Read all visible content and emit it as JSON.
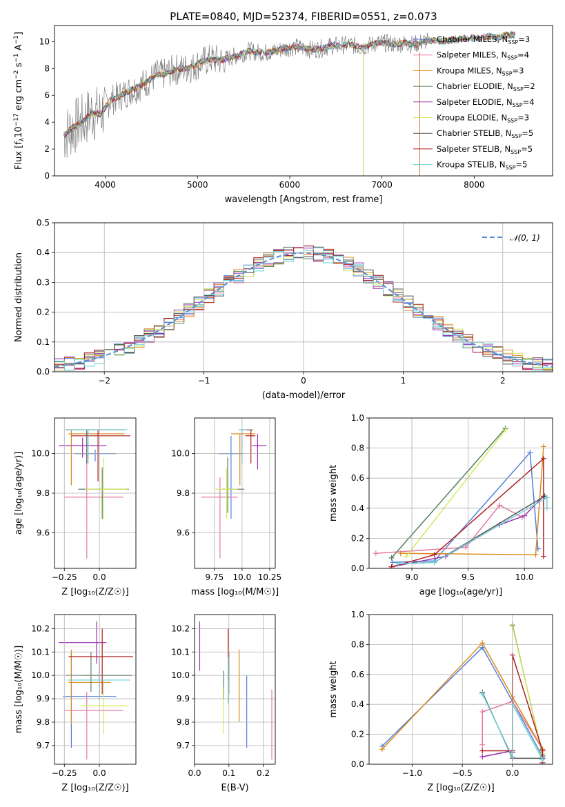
{
  "chart_data": [
    {
      "id": "spectrum",
      "type": "line",
      "title": "PLATE=0840, MJD=52374, FIBERID=0551, z=0.073",
      "xlabel": "wavelength [Angstrom, rest frame]",
      "ylabel": "Flux [f",
      "xlim": [
        3450,
        8850
      ],
      "ylim": [
        0,
        11.2
      ],
      "xticks": [
        4000,
        5000,
        6000,
        7000,
        8000
      ],
      "yticks": [
        0,
        2,
        4,
        6,
        8,
        10
      ],
      "grid": false,
      "legend_position": "right",
      "data_series": {
        "name": "data",
        "color": "#808080",
        "x": [
          3550,
          3650,
          3750,
          3850,
          3950,
          4050,
          4150,
          4250,
          4350,
          4450,
          4550,
          4650,
          4750,
          4850,
          4950,
          5050,
          5150,
          5250,
          5350,
          5450,
          5550,
          5650,
          5750,
          5850,
          5950,
          6050,
          6150,
          6250,
          6350,
          6450,
          6550,
          6650,
          6750,
          6850,
          6950,
          7050,
          7150,
          7250,
          7350,
          7450,
          7550,
          7650,
          7750,
          7850,
          7950,
          8050,
          8150,
          8250,
          8350,
          8450
        ],
        "y": [
          3.0,
          3.6,
          4.0,
          4.7,
          4.6,
          5.6,
          5.9,
          6.3,
          6.6,
          7.0,
          7.5,
          7.6,
          7.9,
          8.0,
          8.1,
          8.5,
          8.7,
          8.6,
          8.8,
          9.0,
          9.3,
          9.2,
          9.2,
          9.3,
          9.5,
          9.6,
          9.5,
          9.4,
          9.5,
          9.7,
          9.7,
          9.8,
          9.6,
          9.7,
          9.9,
          9.9,
          9.8,
          9.9,
          9.8,
          10.0,
          10.1,
          10.0,
          10.1,
          10.2,
          10.3,
          10.2,
          10.4,
          10.3,
          10.5,
          10.5
        ]
      },
      "models": [
        {
          "name": "Chabrier MILES",
          "nssp": "3",
          "color": "#4f7fd8"
        },
        {
          "name": "Salpeter MILES",
          "nssp": "4",
          "color": "#e6779f"
        },
        {
          "name": "Kroupa MILES",
          "nssp": "3",
          "color": "#d98a1a"
        },
        {
          "name": "Chabrier ELODIE",
          "nssp": "2",
          "color": "#50805c"
        },
        {
          "name": "Salpeter ELODIE",
          "nssp": "4",
          "color": "#9a2fb0"
        },
        {
          "name": "Kroupa ELODIE",
          "nssp": "3",
          "color": "#d7e85a"
        },
        {
          "name": "Chabrier STELIB",
          "nssp": "5",
          "color": "#555555"
        },
        {
          "name": "Salpeter STELIB",
          "nssp": "5",
          "color": "#b01c1c"
        },
        {
          "name": "Kroupa STELIB",
          "nssp": "5",
          "color": "#6ad3d8"
        }
      ]
    },
    {
      "id": "residuals",
      "type": "line",
      "xlabel": "(data-model)/error",
      "ylabel": "Normed distribution",
      "xlim": [
        -2.5,
        2.5
      ],
      "ylim": [
        0,
        0.5
      ],
      "xticks": [
        -2,
        -1,
        0,
        1,
        2
      ],
      "yticks": [
        0.0,
        0.1,
        0.2,
        0.3,
        0.4,
        0.5
      ],
      "grid": true,
      "legend_position": "top-right",
      "legend": "𝒩(0, 1)",
      "gaussian_color": "#5b8fd6"
    },
    {
      "id": "age_vs_Z",
      "type": "scatter",
      "xlabel": "Z [log₁₀(Z/Z☉)]",
      "ylabel": "age  [log₁₀(age/yr)]",
      "xlim": [
        -0.32,
        0.26
      ],
      "ylim": [
        9.42,
        10.18
      ],
      "xticks": [
        -0.25,
        0.0
      ],
      "yticks": [
        9.6,
        9.8,
        10.0
      ],
      "grid": true,
      "points": [
        {
          "c": "#4f7fd8",
          "x": -0.03,
          "y": 10.0,
          "xe": [
            -0.18,
            0.12
          ],
          "ye": [
            9.96,
            10.02
          ]
        },
        {
          "c": "#e6779f",
          "x": -0.09,
          "y": 9.78,
          "xe": [
            -0.25,
            0.17
          ],
          "ye": [
            9.47,
            10.0
          ]
        },
        {
          "c": "#d98a1a",
          "x": -0.2,
          "y": 10.1,
          "xe": [
            -0.22,
            0.18
          ],
          "ye": [
            9.84,
            10.12
          ]
        },
        {
          "c": "#50805c",
          "x": 0.02,
          "y": 9.82,
          "xe": [
            -0.15,
            0.21
          ],
          "ye": [
            9.67,
            9.93
          ]
        },
        {
          "c": "#9a2fb0",
          "x": -0.12,
          "y": 10.04,
          "xe": [
            -0.29,
            0.05
          ],
          "ye": [
            9.98,
            10.08
          ]
        },
        {
          "c": "#d7e85a",
          "x": 0.03,
          "y": 9.82,
          "xe": [
            -0.1,
            0.2
          ],
          "ye": [
            9.67,
            9.98
          ]
        },
        {
          "c": "#555555",
          "x": -0.09,
          "y": 10.12,
          "xe": [
            -0.24,
            0.18
          ],
          "ye": [
            9.95,
            10.12
          ]
        },
        {
          "c": "#b01c1c",
          "x": -0.01,
          "y": 10.09,
          "xe": [
            -0.2,
            0.22
          ],
          "ye": [
            9.86,
            10.12
          ]
        },
        {
          "c": "#6ad3d8",
          "x": -0.08,
          "y": 10.12,
          "xe": [
            -0.23,
            0.2
          ],
          "ye": [
            9.95,
            10.12
          ]
        }
      ]
    },
    {
      "id": "age_vs_mass",
      "type": "scatter",
      "xlabel": "mass [log₁₀(M/M☉)]",
      "ylabel": "",
      "xlim": [
        9.57,
        10.3
      ],
      "ylim": [
        9.42,
        10.18
      ],
      "xticks": [
        9.75,
        10.0,
        10.25
      ],
      "yticks": [
        9.6,
        9.8,
        10.0
      ],
      "grid": true,
      "points": [
        {
          "c": "#4f7fd8",
          "x": 9.9,
          "y": 10.0,
          "xe": [
            9.79,
            10.0
          ],
          "ye": [
            9.67,
            10.09
          ]
        },
        {
          "c": "#e6779f",
          "x": 9.8,
          "y": 9.78,
          "xe": [
            9.63,
            9.96
          ],
          "ye": [
            9.47,
            9.88
          ]
        },
        {
          "c": "#d98a1a",
          "x": 9.98,
          "y": 10.1,
          "xe": [
            9.9,
            10.12
          ],
          "ye": [
            9.84,
            10.1
          ]
        },
        {
          "c": "#50805c",
          "x": 9.87,
          "y": 9.82,
          "xe": [
            9.82,
            10.02
          ],
          "ye": [
            9.7,
            9.98
          ]
        },
        {
          "c": "#9a2fb0",
          "x": 10.14,
          "y": 10.04,
          "xe": [
            10.09,
            10.22
          ],
          "ye": [
            9.92,
            10.1
          ]
        },
        {
          "c": "#d7e85a",
          "x": 9.86,
          "y": 9.82,
          "xe": [
            9.76,
            9.96
          ],
          "ye": [
            9.67,
            9.93
          ]
        },
        {
          "c": "#555555",
          "x": 10.0,
          "y": 10.12,
          "xe": [
            9.97,
            10.1
          ],
          "ye": [
            9.95,
            10.12
          ]
        },
        {
          "c": "#b01c1c",
          "x": 10.08,
          "y": 10.09,
          "xe": [
            10.03,
            10.12
          ],
          "ye": [
            9.95,
            10.12
          ]
        },
        {
          "c": "#6ad3d8",
          "x": 10.0,
          "y": 10.12,
          "xe": [
            9.97,
            10.04
          ],
          "ye": [
            9.95,
            10.12
          ]
        }
      ]
    },
    {
      "id": "weight_vs_age",
      "type": "line",
      "xlabel": "age  [log₁₀(age/yr)]",
      "ylabel": "mass weight",
      "xlim": [
        8.62,
        10.25
      ],
      "ylim": [
        0,
        1.0
      ],
      "xticks": [
        9.0,
        9.5,
        10.0
      ],
      "yticks": [
        0.0,
        0.2,
        0.4,
        0.6,
        0.8,
        1.0
      ],
      "grid": true,
      "series": [
        {
          "c": "#4f7fd8",
          "x": [
            8.83,
            9.2,
            10.05,
            10.12
          ],
          "y": [
            0.04,
            0.05,
            0.77,
            0.13
          ]
        },
        {
          "c": "#e6779f",
          "x": [
            8.68,
            9.48,
            9.78,
            9.98
          ],
          "y": [
            0.1,
            0.14,
            0.42,
            0.34
          ]
        },
        {
          "c": "#d98a1a",
          "x": [
            8.9,
            10.1,
            10.17
          ],
          "y": [
            0.1,
            0.09,
            0.81
          ]
        },
        {
          "c": "#50805c",
          "x": [
            8.82,
            9.83
          ],
          "y": [
            0.07,
            0.93
          ]
        },
        {
          "c": "#9a2fb0",
          "x": [
            8.82,
            9.3,
            9.78,
            10.0,
            10.17
          ],
          "y": [
            0.01,
            0.08,
            0.29,
            0.35,
            0.48
          ]
        },
        {
          "c": "#d7e85a",
          "x": [
            8.95,
            9.83
          ],
          "y": [
            0.08,
            0.92
          ]
        },
        {
          "c": "#555555",
          "x": [
            8.88,
            9.2,
            10.18
          ],
          "y": [
            0.03,
            0.04,
            0.48
          ]
        },
        {
          "c": "#b01c1c",
          "x": [
            8.82,
            9.2,
            10.17,
            10.17
          ],
          "y": [
            0.01,
            0.09,
            0.73,
            0.08
          ]
        },
        {
          "c": "#6ad3d8",
          "x": [
            8.88,
            9.2,
            10.2,
            10.2
          ],
          "y": [
            0.03,
            0.04,
            0.47,
            0.4
          ]
        }
      ]
    },
    {
      "id": "mass_vs_Z",
      "type": "scatter",
      "xlabel": "Z [log₁₀(Z/Z☉)]",
      "ylabel": "mass [log₁₀(M/M☉)]",
      "xlim": [
        -0.32,
        0.26
      ],
      "ylim": [
        9.62,
        10.26
      ],
      "xticks": [
        -0.25,
        0.0
      ],
      "yticks": [
        9.7,
        9.8,
        9.9,
        10.0,
        10.1,
        10.2
      ],
      "grid": true,
      "points": [
        {
          "c": "#4f7fd8",
          "x": -0.2,
          "y": 9.91,
          "xe": [
            -0.26,
            0.12
          ],
          "ye": [
            9.69,
            10.1
          ]
        },
        {
          "c": "#e6779f",
          "x": -0.09,
          "y": 9.85,
          "xe": [
            -0.25,
            0.17
          ],
          "ye": [
            9.64,
            9.93
          ]
        },
        {
          "c": "#d98a1a",
          "x": -0.2,
          "y": 9.97,
          "xe": [
            -0.22,
            0.08
          ],
          "ye": [
            9.79,
            10.11
          ]
        },
        {
          "c": "#50805c",
          "x": -0.06,
          "y": 10.0,
          "xe": [
            -0.12,
            0.23
          ],
          "ye": [
            9.93,
            10.1
          ]
        },
        {
          "c": "#9a2fb0",
          "x": -0.02,
          "y": 10.14,
          "xe": [
            -0.29,
            0.05
          ],
          "ye": [
            10.05,
            10.23
          ]
        },
        {
          "c": "#d7e85a",
          "x": 0.03,
          "y": 9.87,
          "xe": [
            -0.13,
            0.21
          ],
          "ye": [
            9.75,
            9.98
          ]
        },
        {
          "c": "#555555",
          "x": 0.0,
          "y": 10.0,
          "xe": [
            -0.24,
            0.23
          ],
          "ye": [
            9.9,
            10.08
          ]
        },
        {
          "c": "#b01c1c",
          "x": 0.02,
          "y": 10.08,
          "xe": [
            -0.22,
            0.24
          ],
          "ye": [
            9.92,
            10.2
          ]
        },
        {
          "c": "#6ad3d8",
          "x": 0.0,
          "y": 9.98,
          "xe": [
            -0.23,
            0.22
          ],
          "ye": [
            9.9,
            10.0
          ]
        }
      ]
    },
    {
      "id": "mass_vs_EBV",
      "type": "scatter",
      "xlabel": "E(B-V)",
      "ylabel": "",
      "xlim": [
        0.0,
        0.235
      ],
      "ylim": [
        9.62,
        10.26
      ],
      "xticks": [
        0.0,
        0.1,
        0.2
      ],
      "yticks": [
        9.7,
        9.8,
        9.9,
        10.0,
        10.1,
        10.2
      ],
      "grid": true,
      "points": [
        {
          "c": "#4f7fd8",
          "x": 0.152,
          "ye": [
            9.69,
            10.0
          ]
        },
        {
          "c": "#e6779f",
          "x": 0.225,
          "ye": [
            9.64,
            9.94
          ]
        },
        {
          "c": "#d98a1a",
          "x": 0.13,
          "ye": [
            9.8,
            10.11
          ]
        },
        {
          "c": "#50805c",
          "x": 0.085,
          "ye": [
            9.9,
            10.02
          ]
        },
        {
          "c": "#9a2fb0",
          "x": 0.015,
          "ye": [
            10.02,
            10.23
          ]
        },
        {
          "c": "#d7e85a",
          "x": 0.084,
          "ye": [
            9.75,
            9.95
          ]
        },
        {
          "c": "#555555",
          "x": 0.1,
          "ye": [
            9.92,
            10.1
          ]
        },
        {
          "c": "#b01c1c",
          "x": 0.098,
          "ye": [
            9.98,
            10.2
          ]
        },
        {
          "c": "#6ad3d8",
          "x": 0.098,
          "ye": [
            9.88,
            10.08
          ]
        }
      ]
    },
    {
      "id": "weight_vs_Z",
      "type": "line",
      "xlabel": "Z [log₁₀(Z/Z☉)]",
      "ylabel": "mass weight",
      "xlim": [
        -1.43,
        0.4
      ],
      "ylim": [
        0,
        1.0
      ],
      "xticks": [
        -1.0,
        -0.5,
        0.0
      ],
      "yticks": [
        0.0,
        0.2,
        0.4,
        0.6,
        0.8,
        1.0
      ],
      "grid": true,
      "series": [
        {
          "c": "#4f7fd8",
          "x": [
            -1.3,
            -0.3,
            0.0,
            0.3
          ],
          "y": [
            0.12,
            0.78,
            0.42,
            0.05
          ]
        },
        {
          "c": "#e6779f",
          "x": [
            -0.3,
            -0.3,
            0.0,
            0.3
          ],
          "y": [
            0.13,
            0.35,
            0.42,
            0.1
          ]
        },
        {
          "c": "#d98a1a",
          "x": [
            -1.3,
            -0.3,
            0.0,
            0.3
          ],
          "y": [
            0.1,
            0.81,
            0.45,
            0.1
          ]
        },
        {
          "c": "#50805c",
          "x": [
            0.0,
            0.3
          ],
          "y": [
            0.93,
            0.06
          ]
        },
        {
          "c": "#9a2fb0",
          "x": [
            -0.3,
            0.0,
            0.0
          ],
          "y": [
            0.05,
            0.09,
            0.08
          ]
        },
        {
          "c": "#d7e85a",
          "x": [
            0.0,
            0.3
          ],
          "y": [
            0.92,
            0.07
          ]
        },
        {
          "c": "#555555",
          "x": [
            -0.3,
            0.0,
            0.3
          ],
          "y": [
            0.48,
            0.04,
            0.04
          ]
        },
        {
          "c": "#b01c1c",
          "x": [
            -0.3,
            0.0,
            0.0,
            0.3,
            0.3
          ],
          "y": [
            0.09,
            0.09,
            0.73,
            0.09,
            0.01
          ]
        },
        {
          "c": "#6ad3d8",
          "x": [
            -0.3,
            0.0,
            0.0,
            0.3
          ],
          "y": [
            0.47,
            0.05,
            0.4,
            0.03
          ]
        }
      ]
    }
  ]
}
